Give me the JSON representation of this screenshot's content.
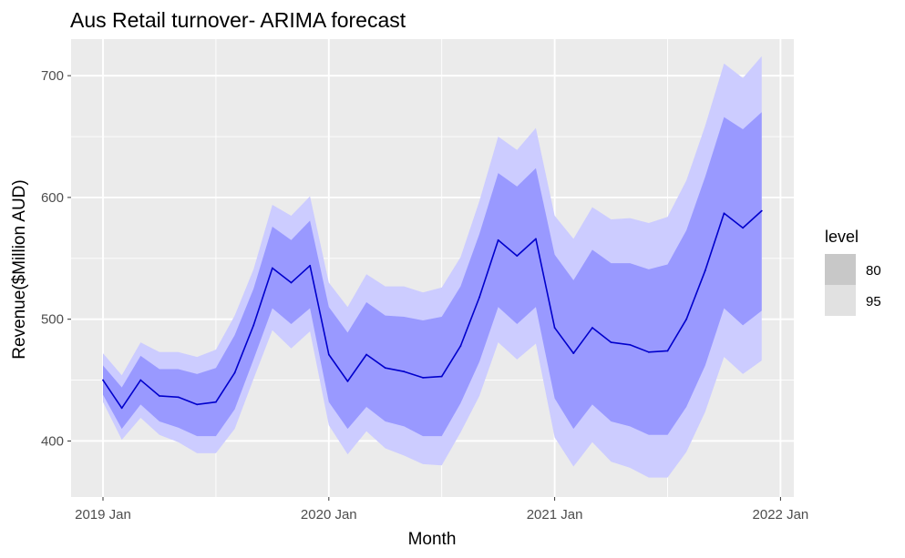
{
  "chart_data": {
    "type": "line",
    "title": "Aus Retail turnover- ARIMA forecast",
    "xlabel": "Month",
    "ylabel": "Revenue($Million AUD)",
    "x_tick_labels": [
      "2019 Jan",
      "2020 Jan",
      "2021 Jan",
      "2022 Jan"
    ],
    "y_ticks": [
      400,
      500,
      600,
      700
    ],
    "ylim": [
      354,
      730
    ],
    "x": [
      "2019-01",
      "2019-02",
      "2019-03",
      "2019-04",
      "2019-05",
      "2019-06",
      "2019-07",
      "2019-08",
      "2019-09",
      "2019-10",
      "2019-11",
      "2019-12",
      "2020-01",
      "2020-02",
      "2020-03",
      "2020-04",
      "2020-05",
      "2020-06",
      "2020-07",
      "2020-08",
      "2020-09",
      "2020-10",
      "2020-11",
      "2020-12",
      "2021-01",
      "2021-02",
      "2021-03",
      "2021-04",
      "2021-05",
      "2021-06",
      "2021-07",
      "2021-08",
      "2021-09",
      "2021-10",
      "2021-11",
      "2021-12"
    ],
    "series": [
      {
        "values": [
          450,
          427,
          450,
          437,
          436,
          430,
          432,
          456,
          495,
          542,
          530,
          544,
          471,
          449,
          471,
          460,
          457,
          452,
          453,
          478,
          518,
          565,
          552,
          566,
          493,
          472,
          493,
          481,
          479,
          473,
          474,
          500,
          540,
          587,
          575,
          589
        ]
      }
    ],
    "intervals": [
      {
        "level": "80",
        "lower": [
          438,
          410,
          430,
          416,
          411,
          404,
          404,
          426,
          467,
          509,
          496,
          509,
          432,
          410,
          428,
          416,
          412,
          404,
          404,
          431,
          465,
          510,
          496,
          510,
          435,
          410,
          430,
          416,
          412,
          405,
          405,
          428,
          462,
          509,
          495,
          507
        ],
        "upper": [
          462,
          444,
          470,
          459,
          459,
          455,
          460,
          487,
          525,
          576,
          565,
          581,
          510,
          489,
          514,
          503,
          502,
          499,
          502,
          527,
          570,
          620,
          609,
          624,
          553,
          532,
          557,
          546,
          546,
          541,
          545,
          573,
          617,
          666,
          656,
          670
        ]
      },
      {
        "level": "95",
        "lower": [
          432,
          401,
          419,
          405,
          399,
          390,
          390,
          410,
          451,
          491,
          476,
          490,
          413,
          389,
          408,
          394,
          388,
          381,
          380,
          407,
          437,
          481,
          467,
          480,
          403,
          379,
          399,
          383,
          378,
          370,
          370,
          391,
          424,
          469,
          455,
          466
        ],
        "upper": [
          472,
          454,
          481,
          473,
          473,
          469,
          475,
          503,
          541,
          594,
          585,
          601,
          530,
          510,
          537,
          527,
          527,
          522,
          526,
          551,
          597,
          650,
          639,
          657,
          585,
          566,
          592,
          582,
          583,
          579,
          584,
          614,
          659,
          710,
          698,
          716
        ]
      }
    ],
    "legend": {
      "title": "level",
      "entries": [
        "80",
        "95"
      ],
      "placement": "right"
    },
    "grid": true,
    "colors": {
      "panel": "#EBEBEB",
      "grid": "#FFFFFF",
      "line": "#0000CC",
      "band80": "#9999FF",
      "band95": "#CCCCFF",
      "legend80": "#C8C8C8",
      "legend95": "#E1E1E1"
    }
  }
}
